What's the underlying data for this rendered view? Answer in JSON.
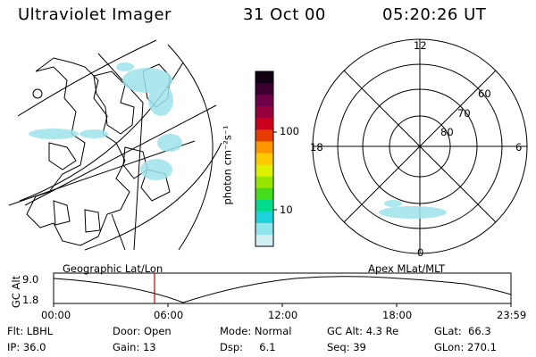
{
  "header": {
    "instrument": "Ultraviolet Imager",
    "date": "31 Oct 00",
    "time": "05:20:26 UT"
  },
  "colorbar": {
    "label": "photon cm⁻²s⁻¹",
    "ticks": [
      "100",
      "10"
    ],
    "colors": [
      "#140014",
      "#3c0030",
      "#6e004a",
      "#96003c",
      "#c8001e",
      "#e63c00",
      "#ff9600",
      "#ffc800",
      "#dcf000",
      "#96e600",
      "#46dc1e",
      "#00dc8c",
      "#1ed2dc",
      "#8ce6ec",
      "#d2f0f4"
    ]
  },
  "polar": {
    "mlt_labels": [
      "12",
      "18",
      "6",
      "0"
    ],
    "lat_labels": [
      "60",
      "70",
      "80"
    ]
  },
  "timeline": {
    "left_title": "Geographic Lat/Lon",
    "right_title": "Apex MLat/MLT",
    "axis_label": "GC Alt",
    "y_ticks": [
      "9.0",
      "1.8"
    ],
    "x_ticks": [
      "00:00",
      "06:00",
      "12:00",
      "18:00",
      "23:59"
    ],
    "current_time_color": "#c00000"
  },
  "info": {
    "col1": [
      "Flt: LBHL",
      "IP: 36.0"
    ],
    "col2": [
      "Door: Open",
      "Gain: 13"
    ],
    "col3": [
      "Mode: Normal",
      "Dsp:     6.1"
    ],
    "col4": [
      "GC Alt: 4.3 Re",
      "Seq: 39"
    ],
    "col5": [
      "GLat:  66.3",
      "GLon: 270.1"
    ]
  }
}
